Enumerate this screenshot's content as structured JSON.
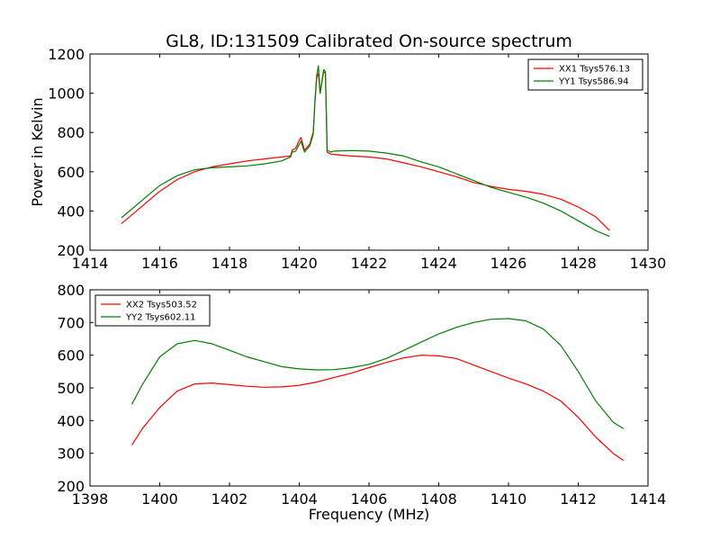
{
  "chart_data": [
    {
      "type": "line",
      "title": "GL8, ID:131509 Calibrated On-source spectrum",
      "xlabel": "",
      "ylabel": "Power in Kelvin",
      "xlim": [
        1414,
        1430
      ],
      "ylim": [
        200,
        1200
      ],
      "x_ticks": [
        "1414",
        "1416",
        "1418",
        "1420",
        "1422",
        "1424",
        "1426",
        "1428",
        "1430"
      ],
      "y_ticks": [
        "200",
        "400",
        "600",
        "800",
        "1000",
        "1200"
      ],
      "legend_position": "top-right",
      "grid": false,
      "series": [
        {
          "name": "XX1 Tsys576.13",
          "color": "#ff0000",
          "x": [
            1414.9,
            1415.5,
            1416.0,
            1416.5,
            1417.0,
            1417.5,
            1418.0,
            1418.5,
            1419.0,
            1419.5,
            1419.75,
            1419.8,
            1419.9,
            1420.0,
            1420.05,
            1420.15,
            1420.3,
            1420.4,
            1420.45,
            1420.5,
            1420.55,
            1420.6,
            1420.7,
            1420.75,
            1420.8,
            1420.9,
            1421.0,
            1421.5,
            1422.0,
            1422.5,
            1423.0,
            1423.5,
            1424.0,
            1424.5,
            1425.0,
            1425.5,
            1426.0,
            1426.5,
            1427.0,
            1427.5,
            1428.0,
            1428.5,
            1428.9
          ],
          "y": [
            335,
            425,
            500,
            560,
            600,
            625,
            640,
            655,
            665,
            675,
            680,
            710,
            720,
            760,
            775,
            710,
            740,
            800,
            950,
            1080,
            1100,
            1000,
            1110,
            1100,
            700,
            690,
            688,
            680,
            675,
            665,
            645,
            625,
            600,
            575,
            545,
            525,
            510,
            500,
            485,
            460,
            420,
            370,
            300
          ]
        },
        {
          "name": "YY1 Tsys586.94",
          "color": "#008000",
          "x": [
            1414.9,
            1415.5,
            1416.0,
            1416.5,
            1417.0,
            1417.5,
            1418.0,
            1418.5,
            1419.0,
            1419.5,
            1419.75,
            1419.8,
            1419.9,
            1420.0,
            1420.05,
            1420.15,
            1420.3,
            1420.4,
            1420.45,
            1420.5,
            1420.55,
            1420.6,
            1420.7,
            1420.75,
            1420.8,
            1420.9,
            1421.0,
            1421.5,
            1422.0,
            1422.5,
            1423.0,
            1423.5,
            1424.0,
            1424.5,
            1425.0,
            1425.5,
            1426.0,
            1426.5,
            1427.0,
            1427.5,
            1428.0,
            1428.5,
            1428.9
          ],
          "y": [
            365,
            455,
            530,
            580,
            610,
            620,
            625,
            630,
            640,
            655,
            675,
            700,
            705,
            740,
            755,
            700,
            730,
            790,
            960,
            1090,
            1140,
            1000,
            1120,
            1110,
            710,
            700,
            705,
            708,
            705,
            695,
            680,
            650,
            625,
            590,
            555,
            520,
            495,
            470,
            440,
            400,
            350,
            300,
            270
          ]
        }
      ]
    },
    {
      "type": "line",
      "title": "",
      "xlabel": "Frequency (MHz)",
      "ylabel": "",
      "xlim": [
        1398,
        1414
      ],
      "ylim": [
        200,
        800
      ],
      "x_ticks": [
        "1398",
        "1400",
        "1402",
        "1404",
        "1406",
        "1408",
        "1410",
        "1412",
        "1414"
      ],
      "y_ticks": [
        "200",
        "300",
        "400",
        "500",
        "600",
        "700",
        "800"
      ],
      "legend_position": "top-left",
      "grid": false,
      "series": [
        {
          "name": "XX2 Tsys503.52",
          "color": "#ff0000",
          "x": [
            1399.2,
            1399.5,
            1400.0,
            1400.5,
            1401.0,
            1401.5,
            1402.0,
            1402.5,
            1403.0,
            1403.5,
            1404.0,
            1404.5,
            1405.0,
            1405.5,
            1406.0,
            1406.5,
            1407.0,
            1407.5,
            1408.0,
            1408.5,
            1409.0,
            1409.5,
            1410.0,
            1410.5,
            1411.0,
            1411.5,
            1412.0,
            1412.5,
            1413.0,
            1413.3
          ],
          "y": [
            325,
            375,
            440,
            490,
            512,
            515,
            510,
            505,
            502,
            503,
            508,
            518,
            532,
            545,
            562,
            578,
            592,
            600,
            598,
            590,
            570,
            550,
            530,
            512,
            490,
            460,
            410,
            350,
            300,
            278
          ]
        },
        {
          "name": "YY2 Tsys602.11",
          "color": "#008000",
          "x": [
            1399.2,
            1399.5,
            1400.0,
            1400.5,
            1401.0,
            1401.5,
            1402.0,
            1402.5,
            1403.0,
            1403.5,
            1404.0,
            1404.5,
            1405.0,
            1405.5,
            1406.0,
            1406.5,
            1407.0,
            1407.5,
            1408.0,
            1408.5,
            1409.0,
            1409.5,
            1410.0,
            1410.5,
            1411.0,
            1411.5,
            1412.0,
            1412.5,
            1413.0,
            1413.3
          ],
          "y": [
            450,
            510,
            595,
            635,
            645,
            635,
            615,
            595,
            580,
            565,
            558,
            555,
            556,
            562,
            572,
            590,
            615,
            640,
            665,
            685,
            700,
            710,
            712,
            705,
            680,
            630,
            550,
            460,
            395,
            375
          ]
        }
      ]
    }
  ]
}
